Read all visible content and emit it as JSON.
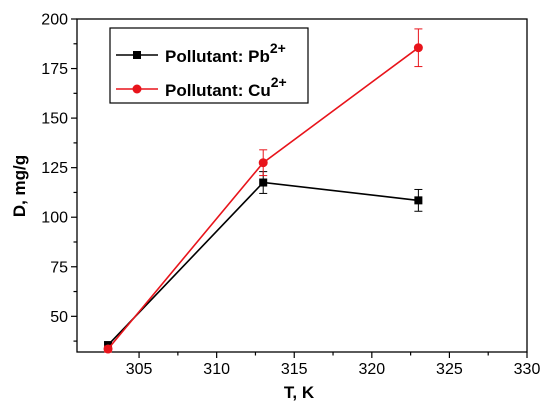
{
  "chart_data": {
    "type": "line",
    "xlabel": "T, K",
    "ylabel": "D, mg/g",
    "xlim": [
      301,
      330
    ],
    "ylim": [
      32,
      200
    ],
    "x_ticks": [
      305,
      310,
      315,
      320,
      325,
      330
    ],
    "y_ticks": [
      50,
      75,
      100,
      125,
      150,
      175,
      200
    ],
    "grid": false,
    "legend_position": "top-left",
    "series": [
      {
        "name": "Pollutant: Pb",
        "superscript": "2+",
        "color": "#000000",
        "marker": "square",
        "x": [
          303,
          313,
          323
        ],
        "y": [
          35.5,
          117.5,
          108.5
        ],
        "error": [
          1.5,
          5.5,
          5.5
        ]
      },
      {
        "name": "Pollutant: Cu",
        "superscript": "2+",
        "color": "#e8141b",
        "marker": "circle",
        "x": [
          303,
          313,
          323
        ],
        "y": [
          33.5,
          127.5,
          185.5
        ],
        "error": [
          1.5,
          6.5,
          9.5
        ]
      }
    ]
  }
}
